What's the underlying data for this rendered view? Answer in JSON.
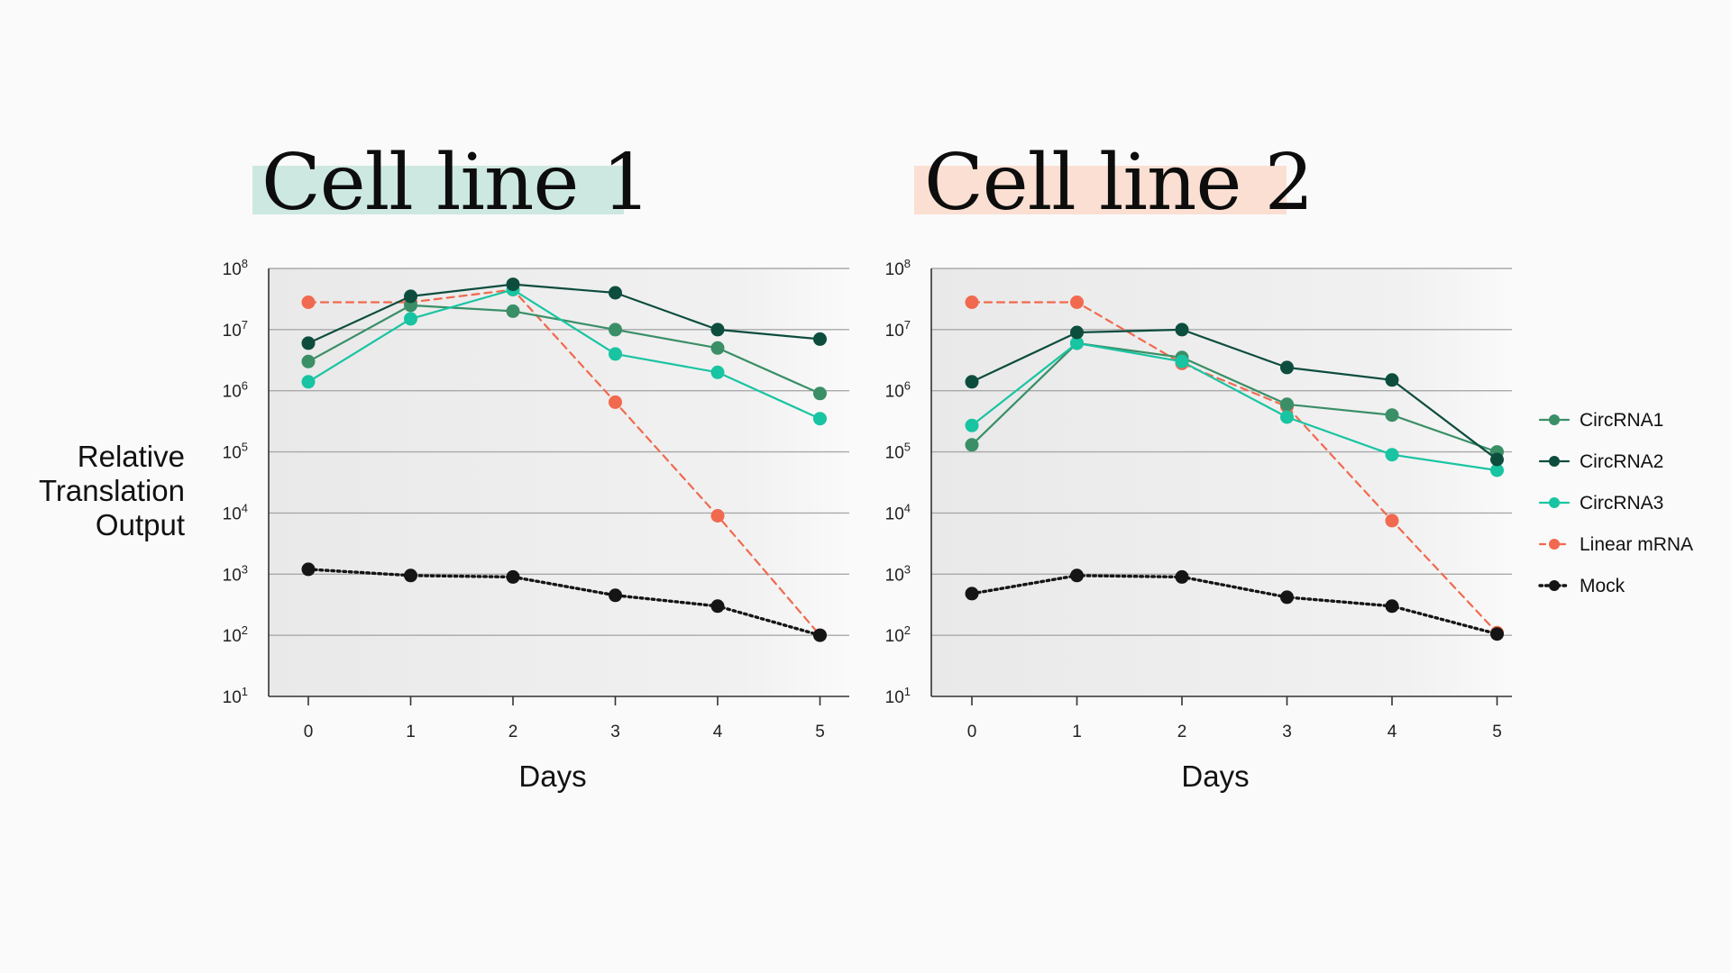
{
  "y_axis_label": "Relative Translation Output",
  "colors": {
    "circ1": "#3a8f67",
    "circ2": "#0d4d3e",
    "circ3": "#19c4a2",
    "linear": "#f1694e",
    "mock": "#151515",
    "title1_highlight": "#cde8e1",
    "title2_highlight": "#fbdfd3"
  },
  "legend": [
    {
      "label": "CircRNA1",
      "key": "circ1",
      "style": "solid"
    },
    {
      "label": "CircRNA2",
      "key": "circ2",
      "style": "solid"
    },
    {
      "label": "CircRNA3",
      "key": "circ3",
      "style": "solid"
    },
    {
      "label": "Linear mRNA",
      "key": "linear",
      "style": "dashed"
    },
    {
      "label": "Mock",
      "key": "mock",
      "style": "dotted"
    }
  ],
  "chart_data": [
    {
      "type": "line",
      "title": "Cell line 1",
      "xlabel": "Days",
      "ylabel": "Relative Translation Output",
      "y_scale": "log",
      "ylim": [
        10,
        100000000
      ],
      "y_ticks": [
        {
          "base": "10",
          "exp": "1"
        },
        {
          "base": "10",
          "exp": "2"
        },
        {
          "base": "10",
          "exp": "3"
        },
        {
          "base": "10",
          "exp": "4"
        },
        {
          "base": "10",
          "exp": "5"
        },
        {
          "base": "10",
          "exp": "6"
        },
        {
          "base": "10",
          "exp": "7"
        },
        {
          "base": "10",
          "exp": "8"
        }
      ],
      "x": [
        "0",
        "1",
        "2",
        "3",
        "4",
        "5"
      ],
      "grid": true,
      "series": [
        {
          "name": "CircRNA1",
          "key": "circ1",
          "values": [
            3000000,
            25000000,
            20000000,
            10000000,
            5000000,
            900000
          ]
        },
        {
          "name": "CircRNA2",
          "key": "circ2",
          "values": [
            6000000,
            35000000,
            55000000,
            40000000,
            10000000,
            7000000
          ]
        },
        {
          "name": "CircRNA3",
          "key": "circ3",
          "values": [
            1400000,
            15000000,
            45000000,
            4000000,
            2000000,
            350000
          ]
        },
        {
          "name": "Linear mRNA",
          "key": "linear",
          "values": [
            28000000,
            28000000,
            45000000,
            650000,
            9000,
            100
          ]
        },
        {
          "name": "Mock",
          "key": "mock",
          "values": [
            1200,
            950,
            900,
            450,
            300,
            100
          ]
        }
      ]
    },
    {
      "type": "line",
      "title": "Cell line 2",
      "xlabel": "Days",
      "ylabel": "Relative Translation Output",
      "y_scale": "log",
      "ylim": [
        10,
        100000000
      ],
      "y_ticks": [
        {
          "base": "10",
          "exp": "1"
        },
        {
          "base": "10",
          "exp": "2"
        },
        {
          "base": "10",
          "exp": "3"
        },
        {
          "base": "10",
          "exp": "4"
        },
        {
          "base": "10",
          "exp": "5"
        },
        {
          "base": "10",
          "exp": "6"
        },
        {
          "base": "10",
          "exp": "7"
        },
        {
          "base": "10",
          "exp": "8"
        }
      ],
      "x": [
        "0",
        "1",
        "2",
        "3",
        "4",
        "5"
      ],
      "grid": true,
      "series": [
        {
          "name": "CircRNA1",
          "key": "circ1",
          "values": [
            130000,
            6000000,
            3500000,
            600000,
            400000,
            100000
          ]
        },
        {
          "name": "CircRNA2",
          "key": "circ2",
          "values": [
            1400000,
            9000000,
            10000000,
            2400000,
            1500000,
            75000
          ]
        },
        {
          "name": "CircRNA3",
          "key": "circ3",
          "values": [
            270000,
            6000000,
            3000000,
            370000,
            90000,
            50000
          ]
        },
        {
          "name": "Linear mRNA",
          "key": "linear",
          "values": [
            28000000,
            28000000,
            2800000,
            550000,
            7500,
            110
          ]
        },
        {
          "name": "Mock",
          "key": "mock",
          "values": [
            480,
            950,
            900,
            420,
            300,
            105
          ]
        }
      ]
    }
  ]
}
